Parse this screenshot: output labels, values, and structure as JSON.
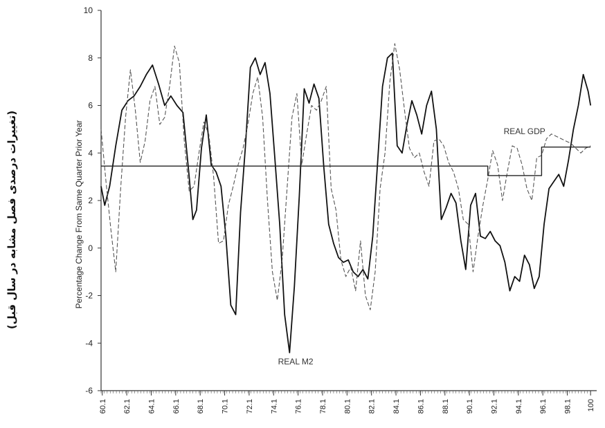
{
  "chart_data": {
    "type": "line",
    "title": "",
    "xlabel": "",
    "ylabel": "Percentage Change From Same Quarter Prior Year",
    "ylabel_translation": "(تغییرات درصدی فصل مشابه در سال قبل)",
    "ylim": [
      -6,
      10
    ],
    "yticks": [
      -6,
      -4,
      -2,
      0,
      2,
      4,
      6,
      8,
      10
    ],
    "xlim": [
      60,
      100.5
    ],
    "xticks": [
      "60.1",
      "62.1",
      "64.1",
      "66.1",
      "68.1",
      "70.1",
      "72.1",
      "74.1",
      "76.1",
      "78.1",
      "80.1",
      "82.1",
      "84.1",
      "86.1",
      "88.1",
      "90.1",
      "92.1",
      "94.1",
      "96.1",
      "98.1",
      "100"
    ],
    "grid": false,
    "series": [
      {
        "name": "REAL M2",
        "style": "solid",
        "color": "#111111",
        "x": [
          60.0,
          60.3,
          60.7,
          61.2,
          61.7,
          62.2,
          62.7,
          63.2,
          63.7,
          64.2,
          64.7,
          65.2,
          65.7,
          66.2,
          66.7,
          67.2,
          67.5,
          67.8,
          68.2,
          68.6,
          69.0,
          69.4,
          69.8,
          70.2,
          70.6,
          71.0,
          71.4,
          71.8,
          72.2,
          72.6,
          73.0,
          73.4,
          73.8,
          74.2,
          74.6,
          75.0,
          75.4,
          75.8,
          76.2,
          76.6,
          77.0,
          77.4,
          77.8,
          78.2,
          78.6,
          79.0,
          79.4,
          79.8,
          80.2,
          80.6,
          81.0,
          81.4,
          81.8,
          82.2,
          82.6,
          83.0,
          83.4,
          83.8,
          84.2,
          84.6,
          85.0,
          85.4,
          85.8,
          86.2,
          86.6,
          87.0,
          87.4,
          87.8,
          88.2,
          88.6,
          89.0,
          89.4,
          89.8,
          90.2,
          90.6,
          91.0,
          91.4,
          91.8,
          92.2,
          92.6,
          93.0,
          93.4,
          93.8,
          94.2,
          94.6,
          95.0,
          95.4,
          95.8,
          96.2,
          96.6,
          97.0,
          97.4,
          97.8,
          98.2,
          98.6,
          99.0,
          99.4,
          99.8,
          100.0
        ],
        "values": [
          2.6,
          1.8,
          2.6,
          4.3,
          5.8,
          6.2,
          6.4,
          6.8,
          7.3,
          7.7,
          6.9,
          6.0,
          6.4,
          6.0,
          5.7,
          3.0,
          1.2,
          1.6,
          4.2,
          5.6,
          3.5,
          3.2,
          2.6,
          0.5,
          -2.4,
          -2.8,
          1.5,
          4.3,
          7.6,
          8.0,
          7.3,
          7.8,
          6.5,
          3.8,
          1.0,
          -2.8,
          -4.4,
          -1.6,
          2.2,
          6.7,
          6.1,
          6.9,
          6.3,
          3.4,
          1.0,
          0.2,
          -0.4,
          -0.6,
          -0.5,
          -1.0,
          -1.2,
          -0.9,
          -1.3,
          0.5,
          3.6,
          6.8,
          8.0,
          8.2,
          4.3,
          4.0,
          5.2,
          6.2,
          5.6,
          4.8,
          6.0,
          6.6,
          5.0,
          1.2,
          1.7,
          2.3,
          1.9,
          0.3,
          -0.9,
          1.8,
          2.3,
          0.5,
          0.4,
          0.7,
          0.3,
          0.1,
          -0.6,
          -1.8,
          -1.2,
          -1.4,
          -0.3,
          -0.7,
          -1.7,
          -1.2,
          1.0,
          2.5,
          2.8,
          3.1,
          2.6,
          3.7,
          5.0,
          6.0,
          7.3,
          6.6,
          6.0
        ],
        "label_at": [
          75.9,
          -4.9
        ]
      },
      {
        "name": "",
        "style": "dashed",
        "color": "#555555",
        "x": [
          60.0,
          60.4,
          60.8,
          61.2,
          61.6,
          62.0,
          62.4,
          62.8,
          63.2,
          63.6,
          64.0,
          64.4,
          64.8,
          65.2,
          65.6,
          66.0,
          66.4,
          66.8,
          67.2,
          67.6,
          68.0,
          68.4,
          68.8,
          69.2,
          69.6,
          70.0,
          70.4,
          70.8,
          71.2,
          71.6,
          72.0,
          72.4,
          72.8,
          73.2,
          73.6,
          74.0,
          74.4,
          74.8,
          75.2,
          75.6,
          76.0,
          76.4,
          76.8,
          77.2,
          77.6,
          78.0,
          78.4,
          78.8,
          79.2,
          79.6,
          80.0,
          80.4,
          80.8,
          81.2,
          81.6,
          82.0,
          82.4,
          82.8,
          83.2,
          83.6,
          84.0,
          84.4,
          84.8,
          85.2,
          85.6,
          86.0,
          86.4,
          86.8,
          87.2,
          87.6,
          88.0,
          88.4,
          88.8,
          89.2,
          89.6,
          90.0,
          90.4,
          90.8,
          91.2,
          91.6,
          92.0,
          92.4,
          92.8,
          93.2,
          93.6,
          94.0,
          94.4,
          94.8,
          95.2,
          95.6,
          96.0,
          96.4,
          96.8,
          97.2,
          97.6,
          98.0,
          98.4,
          98.8,
          99.2,
          99.6,
          100.0
        ],
        "values": [
          5.0,
          2.8,
          0.8,
          -1.0,
          2.5,
          5.5,
          7.5,
          5.8,
          3.6,
          4.5,
          6.2,
          6.8,
          5.2,
          5.5,
          6.8,
          8.5,
          7.8,
          4.5,
          2.4,
          2.6,
          4.0,
          5.3,
          4.8,
          3.0,
          0.2,
          0.3,
          1.8,
          2.6,
          3.5,
          4.2,
          5.2,
          6.5,
          7.2,
          5.5,
          2.0,
          -1.0,
          -2.2,
          -0.5,
          2.5,
          5.5,
          6.5,
          3.5,
          4.8,
          6.0,
          5.8,
          6.2,
          6.8,
          2.5,
          1.6,
          -0.5,
          -1.2,
          -0.8,
          -1.8,
          0.3,
          -2.0,
          -2.6,
          -1.0,
          2.5,
          4.0,
          7.0,
          8.6,
          7.5,
          5.8,
          4.2,
          3.8,
          4.0,
          3.2,
          2.6,
          4.5,
          4.6,
          4.3,
          3.6,
          3.2,
          2.5,
          1.2,
          1.0,
          -1.0,
          0.5,
          1.8,
          2.9,
          4.1,
          3.5,
          2.0,
          3.2,
          4.3,
          4.2,
          3.5,
          2.5,
          2.0,
          3.8,
          3.9,
          4.6,
          4.8,
          4.7,
          4.6,
          4.5,
          4.4,
          4.2,
          4.0,
          4.2,
          4.3
        ]
      },
      {
        "name": "REAL GDP",
        "style": "solid-thin",
        "color": "#222222",
        "x": [
          60.0,
          91.6,
          91.6,
          96.0,
          96.0,
          100.0
        ],
        "values": [
          3.45,
          3.45,
          3.05,
          3.05,
          4.25,
          4.25
        ],
        "label_at": [
          94.6,
          4.8
        ]
      }
    ]
  }
}
